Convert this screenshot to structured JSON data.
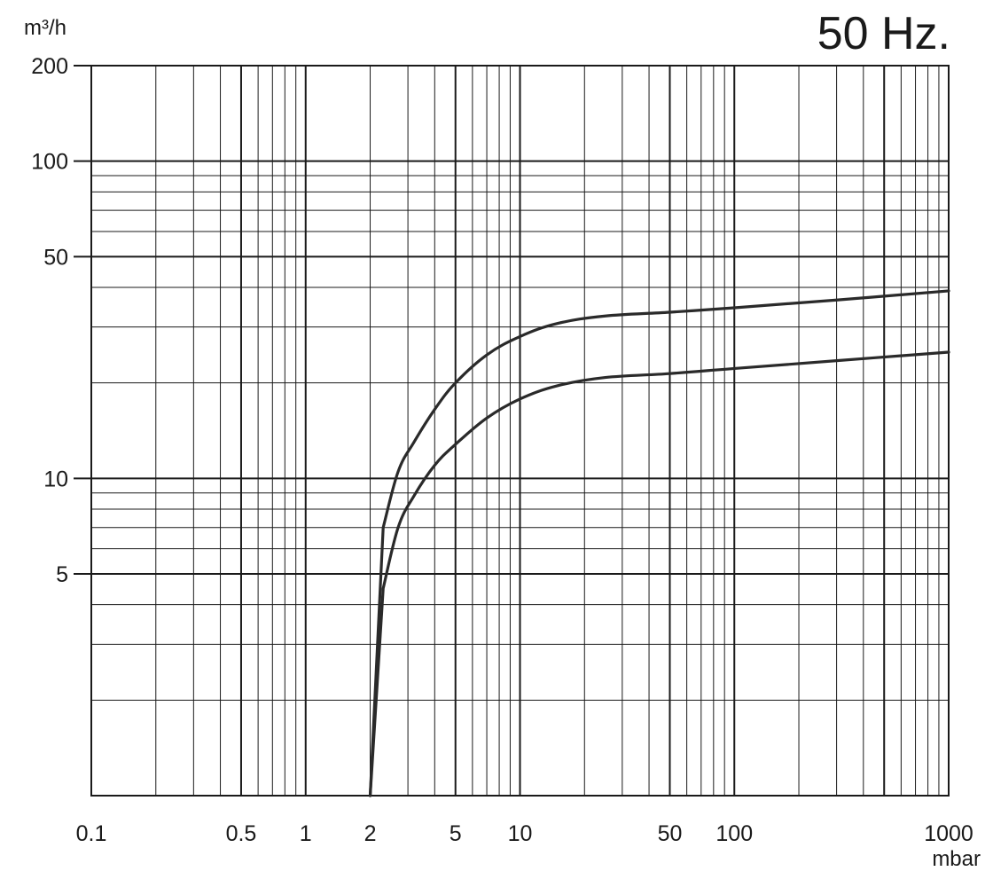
{
  "chart_data": {
    "type": "line",
    "title": "50 Hz.",
    "xlabel": "mbar",
    "ylabel": "m³/h",
    "x_scale": "log",
    "y_scale": "log",
    "xlim": [
      0.1,
      1000
    ],
    "ylim": [
      1,
      200
    ],
    "grid": true,
    "x_ticks": [
      {
        "value": 0.1,
        "label": "0.1"
      },
      {
        "value": 0.5,
        "label": "0.5"
      },
      {
        "value": 1,
        "label": "1"
      },
      {
        "value": 2,
        "label": "2"
      },
      {
        "value": 5,
        "label": "5"
      },
      {
        "value": 10,
        "label": "10"
      },
      {
        "value": 50,
        "label": "50"
      },
      {
        "value": 100,
        "label": "100"
      },
      {
        "value": 1000,
        "label": "1000"
      }
    ],
    "y_ticks": [
      {
        "value": 200,
        "label": "200"
      },
      {
        "value": 100,
        "label": "100"
      },
      {
        "value": 50,
        "label": "50"
      },
      {
        "value": 10,
        "label": "10"
      },
      {
        "value": 5,
        "label": "5"
      }
    ],
    "series": [
      {
        "x": [
          2.0,
          2.3,
          2.7,
          3.2,
          4.0,
          5.0,
          7.0,
          10.0,
          15.0,
          25.0,
          50.0,
          100.0,
          300.0,
          1000.0
        ],
        "y": [
          1.0,
          7.0,
          10.5,
          13.0,
          16.5,
          20.0,
          24.5,
          28.0,
          30.8,
          32.5,
          33.4,
          34.5,
          36.5,
          39.0
        ]
      },
      {
        "x": [
          2.0,
          2.3,
          2.7,
          3.2,
          4.0,
          5.0,
          7.0,
          10.0,
          15.0,
          25.0,
          50.0,
          100.0,
          300.0,
          1000.0
        ],
        "y": [
          1.0,
          4.5,
          7.0,
          8.8,
          11.0,
          12.8,
          15.5,
          17.8,
          19.6,
          20.8,
          21.4,
          22.2,
          23.5,
          25.0
        ]
      }
    ]
  }
}
